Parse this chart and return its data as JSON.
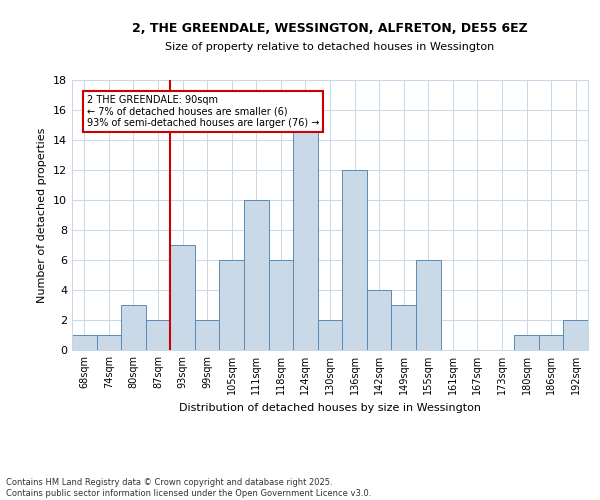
{
  "title1": "2, THE GREENDALE, WESSINGTON, ALFRETON, DE55 6EZ",
  "title2": "Size of property relative to detached houses in Wessington",
  "xlabel": "Distribution of detached houses by size in Wessington",
  "ylabel": "Number of detached properties",
  "categories": [
    "68sqm",
    "74sqm",
    "80sqm",
    "87sqm",
    "93sqm",
    "99sqm",
    "105sqm",
    "111sqm",
    "118sqm",
    "124sqm",
    "130sqm",
    "136sqm",
    "142sqm",
    "149sqm",
    "155sqm",
    "161sqm",
    "167sqm",
    "173sqm",
    "180sqm",
    "186sqm",
    "192sqm"
  ],
  "values": [
    1,
    1,
    3,
    2,
    7,
    2,
    6,
    10,
    6,
    15,
    2,
    12,
    4,
    3,
    6,
    0,
    0,
    0,
    1,
    1,
    2
  ],
  "bar_color": "#c9d9e8",
  "bar_edge_color": "#5a8ab5",
  "vline_x": 3.5,
  "vline_color": "#cc0000",
  "annotation_text": "2 THE GREENDALE: 90sqm\n← 7% of detached houses are smaller (6)\n93% of semi-detached houses are larger (76) →",
  "annotation_box_color": "#ffffff",
  "annotation_box_edge": "#cc0000",
  "ylim": [
    0,
    18
  ],
  "yticks": [
    0,
    2,
    4,
    6,
    8,
    10,
    12,
    14,
    16,
    18
  ],
  "footer": "Contains HM Land Registry data © Crown copyright and database right 2025.\nContains public sector information licensed under the Open Government Licence v3.0.",
  "bg_color": "#ffffff",
  "grid_color": "#c8d8e8"
}
